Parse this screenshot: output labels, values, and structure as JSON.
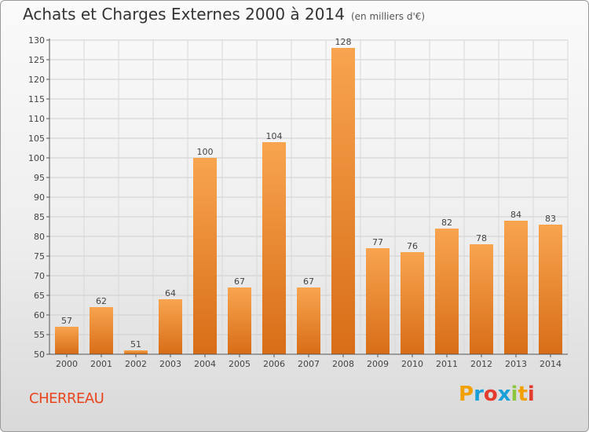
{
  "header": {
    "title": "Achats et Charges Externes 2000 à 2014",
    "subtitle": "(en milliers d'€)"
  },
  "footer": {
    "commune": "CHERREAU",
    "logo_letters": [
      "P",
      "r",
      "o",
      "x",
      "i",
      "t",
      "i"
    ],
    "logo_colors": [
      "#f2a000",
      "#1aa0d8",
      "#e33b2e",
      "#1aa0d8",
      "#8cc63f",
      "#f2a000",
      "#e33b2e"
    ]
  },
  "chart_data": {
    "type": "bar",
    "title": "Achats et Charges Externes 2000 à 2014",
    "subtitle": "(en milliers d'€)",
    "xlabel": "",
    "ylabel": "",
    "categories": [
      "2000",
      "2001",
      "2002",
      "2003",
      "2004",
      "2005",
      "2006",
      "2007",
      "2008",
      "2009",
      "2010",
      "2011",
      "2012",
      "2013",
      "2014"
    ],
    "values": [
      57,
      62,
      51,
      64,
      100,
      67,
      104,
      67,
      128,
      77,
      76,
      82,
      78,
      84,
      83
    ],
    "ylim": [
      50,
      130
    ],
    "yticks": [
      50,
      55,
      60,
      65,
      70,
      75,
      80,
      85,
      90,
      95,
      100,
      105,
      110,
      115,
      120,
      125,
      130
    ],
    "grid": true,
    "bar_color_top": "#f8a44f",
    "bar_color_bottom": "#d86d17"
  }
}
